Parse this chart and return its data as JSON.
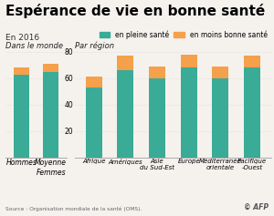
{
  "title": "Espérance de vie en bonne santé",
  "subtitle": "En 2016",
  "legend_healthy": "en pleine santé",
  "legend_less_healthy": "en moins bonne santé",
  "color_healthy": "#3aab96",
  "color_less_healthy": "#f5a04a",
  "background_color": "#f5f2ee",
  "left_section_label": "Dans le monde",
  "right_section_label": "Par région",
  "source": "Source : Organisation mondiale de la santé (OMS).",
  "watermark": "© AFP",
  "left_bars": {
    "labels": [
      "Hommes",
      "Moyenne\nFemmes"
    ],
    "healthy": [
      63,
      65
    ],
    "less_healthy": [
      5,
      6
    ]
  },
  "right_bars": {
    "labels": [
      "Afrique",
      "Amériques",
      "Asie\ndu Sud-Est",
      "Europe",
      "Méditerranée\norientale",
      "Pacifique\n-Ouest"
    ],
    "healthy": [
      53,
      66,
      60,
      68,
      60,
      68
    ],
    "less_healthy": [
      8,
      11,
      9,
      10,
      9,
      9
    ]
  },
  "ylim": [
    0,
    80
  ],
  "yticks": [
    0,
    20,
    40,
    60,
    80
  ]
}
